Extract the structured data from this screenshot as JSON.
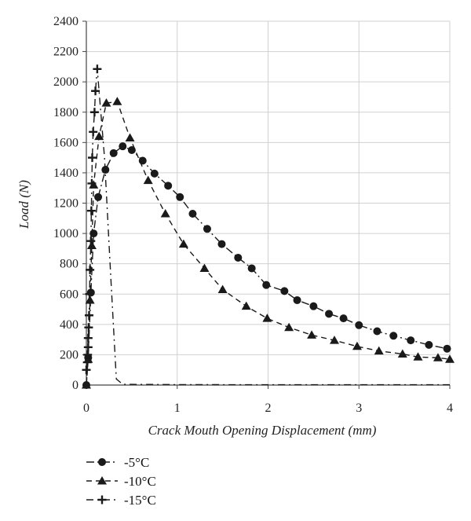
{
  "chart_data": {
    "type": "line",
    "xlabel": "Crack Mouth Opening Displacement (mm)",
    "ylabel": "Load (N)",
    "xlim": [
      0,
      4
    ],
    "ylim": [
      0,
      2400
    ],
    "x_ticks": [
      "0",
      "1",
      "2",
      "3",
      "4"
    ],
    "y_ticks": [
      "0",
      "200",
      "400",
      "600",
      "800",
      "1000",
      "1200",
      "1400",
      "1600",
      "1800",
      "2000",
      "2200",
      "2400"
    ],
    "grid": true,
    "legend_position": "bottom-left",
    "series": [
      {
        "name": "-5°C",
        "marker": "circle",
        "dash": "dashdot",
        "points": [
          [
            0.0,
            0
          ],
          [
            0.02,
            180
          ],
          [
            0.05,
            610
          ],
          [
            0.08,
            1000
          ],
          [
            0.13,
            1240
          ],
          [
            0.21,
            1420
          ],
          [
            0.3,
            1530
          ],
          [
            0.4,
            1575
          ],
          [
            0.5,
            1550
          ],
          [
            0.62,
            1480
          ],
          [
            0.75,
            1395
          ],
          [
            0.9,
            1315
          ],
          [
            1.03,
            1240
          ],
          [
            1.17,
            1130
          ],
          [
            1.33,
            1030
          ],
          [
            1.49,
            930
          ],
          [
            1.67,
            840
          ],
          [
            1.82,
            770
          ],
          [
            1.98,
            660
          ],
          [
            2.18,
            620
          ],
          [
            2.32,
            560
          ],
          [
            2.5,
            520
          ],
          [
            2.67,
            470
          ],
          [
            2.83,
            440
          ],
          [
            3.0,
            395
          ],
          [
            3.2,
            355
          ],
          [
            3.38,
            325
          ],
          [
            3.57,
            295
          ],
          [
            3.77,
            265
          ],
          [
            3.97,
            240
          ]
        ]
      },
      {
        "name": "-10°C",
        "marker": "triangle",
        "dash": "dashed",
        "points": [
          [
            0.0,
            0
          ],
          [
            0.02,
            170
          ],
          [
            0.04,
            560
          ],
          [
            0.06,
            920
          ],
          [
            0.08,
            1320
          ],
          [
            0.14,
            1640
          ],
          [
            0.22,
            1860
          ],
          [
            0.34,
            1870
          ],
          [
            0.48,
            1630
          ],
          [
            0.68,
            1350
          ],
          [
            0.87,
            1130
          ],
          [
            1.07,
            930
          ],
          [
            1.3,
            770
          ],
          [
            1.5,
            630
          ],
          [
            1.76,
            520
          ],
          [
            1.99,
            440
          ],
          [
            2.23,
            380
          ],
          [
            2.48,
            330
          ],
          [
            2.73,
            295
          ],
          [
            2.98,
            255
          ],
          [
            3.22,
            225
          ],
          [
            3.48,
            205
          ],
          [
            3.65,
            185
          ],
          [
            3.87,
            180
          ],
          [
            4.0,
            170
          ]
        ]
      },
      {
        "name": "-15°C",
        "marker": "plus",
        "dash": "dashdot-sparse",
        "points": [
          [
            0.0,
            100
          ],
          [
            0.01,
            150
          ],
          [
            0.015,
            200
          ],
          [
            0.02,
            250
          ],
          [
            0.02,
            310
          ],
          [
            0.025,
            380
          ],
          [
            0.03,
            460
          ],
          [
            0.035,
            600
          ],
          [
            0.04,
            760
          ],
          [
            0.05,
            950
          ],
          [
            0.055,
            1150
          ],
          [
            0.06,
            1330
          ],
          [
            0.065,
            1500
          ],
          [
            0.075,
            1670
          ],
          [
            0.09,
            1800
          ],
          [
            0.1,
            1940
          ],
          [
            0.12,
            2085
          ],
          [
            0.2,
            1500
          ],
          [
            0.27,
            700
          ],
          [
            0.33,
            40
          ],
          [
            0.4,
            5
          ],
          [
            1.0,
            3
          ],
          [
            2.0,
            2
          ],
          [
            3.0,
            2
          ],
          [
            4.0,
            2
          ]
        ]
      }
    ]
  },
  "legend": {
    "items": [
      {
        "label": "-5°C",
        "marker": "circle",
        "dash": "dashdot"
      },
      {
        "label": "-10°C",
        "marker": "triangle",
        "dash": "dashed"
      },
      {
        "label": "-15°C",
        "marker": "plus",
        "dash": "dashdot-sparse"
      }
    ]
  }
}
